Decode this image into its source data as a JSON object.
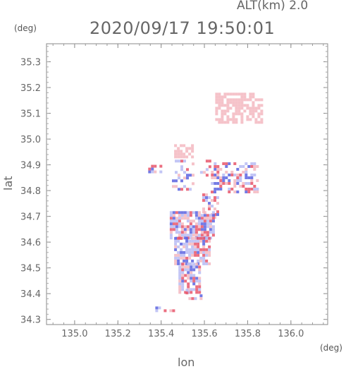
{
  "header": {
    "altitude_label": "ALT(km) 2.0",
    "timestamp": "2020/09/17 19:50:01"
  },
  "chart_data": {
    "type": "heatmap",
    "title": "2020/09/17 19:50:01",
    "subtitle": "ALT(km) 2.0",
    "xlabel": "lon",
    "ylabel": "lat",
    "x_unit": "(deg)",
    "y_unit": "(deg)",
    "xlim": [
      134.87,
      136.17
    ],
    "ylim": [
      34.28,
      35.37
    ],
    "x_ticks": [
      135.0,
      135.2,
      135.4,
      135.6,
      135.8,
      136.0
    ],
    "x_tick_labels": [
      "135.0",
      "135.2",
      "135.4",
      "135.6",
      "135.8",
      "136.0"
    ],
    "y_ticks": [
      34.3,
      34.4,
      34.5,
      34.6,
      34.7,
      34.8,
      34.9,
      35.0,
      35.1,
      35.2,
      35.3
    ],
    "y_tick_labels": [
      "34.3",
      "34.4",
      "34.5",
      "34.6",
      "34.7",
      "34.8",
      "34.9",
      "35.0",
      "35.1",
      "35.2",
      "35.3"
    ],
    "grid": false,
    "colors": {
      "positive": "#e8556a",
      "negative": "#5a63e0",
      "light_positive": "#f3b7bf",
      "light_negative": "#b7bbf3"
    },
    "regions": [
      {
        "lon": [
          135.65,
          135.86
        ],
        "lat": [
          35.07,
          35.18
        ],
        "tone": "light_positive"
      },
      {
        "lon": [
          135.46,
          135.54
        ],
        "lat": [
          34.93,
          34.98
        ],
        "tone": "light_positive"
      },
      {
        "lon": [
          135.34,
          135.4
        ],
        "lat": [
          34.87,
          34.9
        ],
        "tone": "mixed"
      },
      {
        "lon": [
          135.45,
          135.55
        ],
        "lat": [
          34.81,
          34.92
        ],
        "tone": "mixed_sparse"
      },
      {
        "lon": [
          135.58,
          135.62
        ],
        "lat": [
          34.86,
          34.92
        ],
        "tone": "mixed_sparse"
      },
      {
        "lon": [
          135.63,
          135.85
        ],
        "lat": [
          34.8,
          34.91
        ],
        "tone": "mixed"
      },
      {
        "lon": [
          135.59,
          135.66
        ],
        "lat": [
          34.7,
          34.8
        ],
        "tone": "mixed"
      },
      {
        "lon": [
          135.44,
          135.64
        ],
        "lat": [
          34.62,
          34.72
        ],
        "tone": "mixed_dense"
      },
      {
        "lon": [
          135.46,
          135.62
        ],
        "lat": [
          34.52,
          34.62
        ],
        "tone": "mixed_dense"
      },
      {
        "lon": [
          135.48,
          135.58
        ],
        "lat": [
          34.41,
          34.52
        ],
        "tone": "mixed_dense"
      },
      {
        "lon": [
          135.5,
          135.6
        ],
        "lat": [
          34.38,
          34.43
        ],
        "tone": "mixed_sparse"
      },
      {
        "lon": [
          135.36,
          135.46
        ],
        "lat": [
          34.33,
          34.35
        ],
        "tone": "mixed_sparse"
      }
    ]
  }
}
